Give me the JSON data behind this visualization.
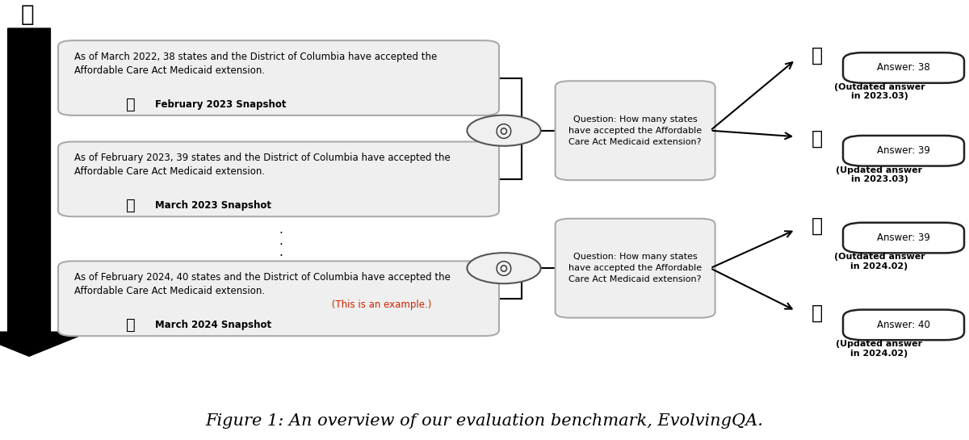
{
  "title": "Figure 1: An overview of our evaluation benchmark, EvolvingQA.",
  "title_fontsize": 15,
  "bg_color": "#ffffff",
  "box_face_color": "#efefef",
  "box_edge_color": "#aaaaaa",
  "answer_box_face": "#ffffff",
  "answer_box_edge": "#222222",
  "red_text_color": "#cc2200",
  "snap1_text": "As of March 2022, 38 states and the District of Columbia have accepted the\nAffordable Care Act Medicaid extension.",
  "snap1_label": "February 2023 Snapshot",
  "snap2_text": "As of February 2023, 39 states and the District of Columbia have accepted the\nAffordable Care Act Medicaid extension.",
  "snap2_label": "March 2023 Snapshot",
  "snap3_text1": "As of February 2024, 40 states and the District of Columbia have accepted the\nAffordable Care Act Medicaid extension.",
  "snap3_text2": " (This is an example.)",
  "snap3_label": "March 2024 Snapshot",
  "q_text": "Question: How many states\nhave accepted the Affordable\nCare Act Medicaid extension?",
  "ans_texts": [
    "Answer: 38",
    "Answer: 39",
    "Answer: 39",
    "Answer: 40"
  ],
  "ans_labels": [
    "(Outdated answer\nin 2023.03)",
    "(Updated answer\nin 2023.03)",
    "(Outdated answer\nin 2024.02)",
    "(Updated answer\nin 2024.02)"
  ]
}
